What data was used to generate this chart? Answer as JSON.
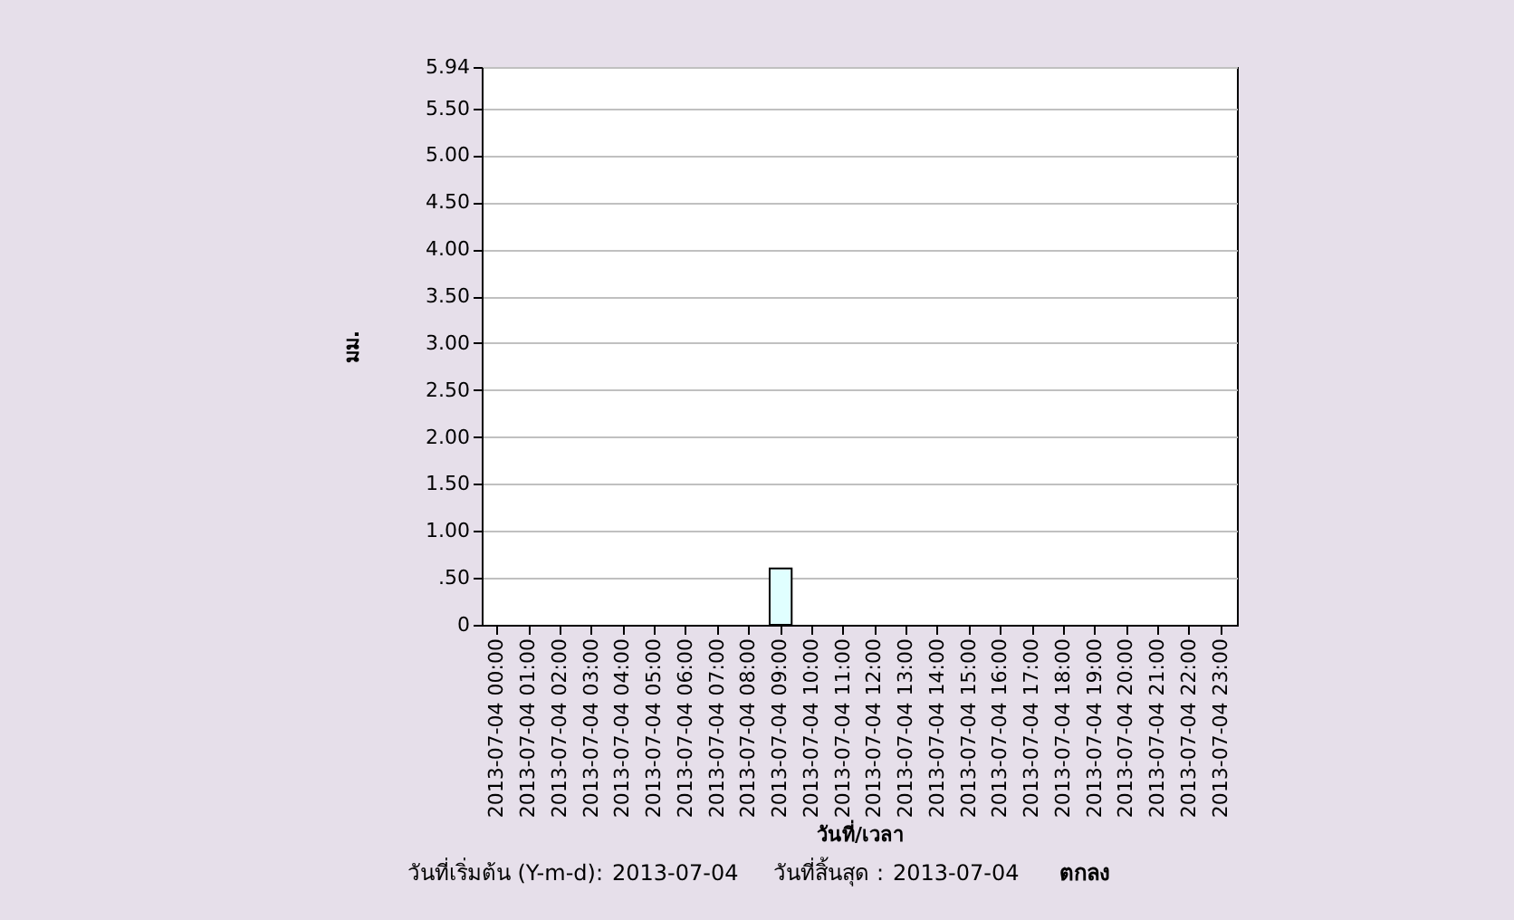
{
  "chart_data": {
    "type": "bar",
    "xlabel": "วันที่/เวลา",
    "ylabel": "มม.",
    "categories": [
      "2013-07-04 00:00",
      "2013-07-04 01:00",
      "2013-07-04 02:00",
      "2013-07-04 03:00",
      "2013-07-04 04:00",
      "2013-07-04 05:00",
      "2013-07-04 06:00",
      "2013-07-04 07:00",
      "2013-07-04 08:00",
      "2013-07-04 09:00",
      "2013-07-04 10:00",
      "2013-07-04 11:00",
      "2013-07-04 12:00",
      "2013-07-04 13:00",
      "2013-07-04 14:00",
      "2013-07-04 15:00",
      "2013-07-04 16:00",
      "2013-07-04 17:00",
      "2013-07-04 18:00",
      "2013-07-04 19:00",
      "2013-07-04 20:00",
      "2013-07-04 21:00",
      "2013-07-04 22:00",
      "2013-07-04 23:00"
    ],
    "values": [
      null,
      null,
      null,
      null,
      null,
      null,
      null,
      null,
      null,
      0.6,
      null,
      null,
      null,
      null,
      null,
      null,
      null,
      null,
      null,
      null,
      null,
      null,
      null,
      null
    ],
    "color": "#e0ffff",
    "ylim": [
      0,
      5.94
    ],
    "yticks": [
      0,
      {
        "value": 0.5,
        "label": ".50"
      },
      {
        "value": 1,
        "label": "1.00"
      },
      {
        "value": 1.5,
        "label": "1.50"
      },
      {
        "value": 2,
        "label": "2.00"
      },
      {
        "value": 2.5,
        "label": "2.50"
      },
      {
        "value": 3,
        "label": "3.00"
      },
      {
        "value": 3.5,
        "label": "3.50"
      },
      {
        "value": 4,
        "label": "4.00"
      },
      {
        "value": 4.5,
        "label": "4.50"
      },
      {
        "value": 5,
        "label": "5.00"
      },
      {
        "value": 5.5,
        "label": "5.50"
      },
      5.94
    ],
    "grid": "y",
    "annotations": [
      "วันที่เริ่มต้น (Y-m-d):",
      "2013-07-04",
      "วันที่สิ้นสุด :",
      "2013-07-04",
      "ตกลง"
    ]
  }
}
